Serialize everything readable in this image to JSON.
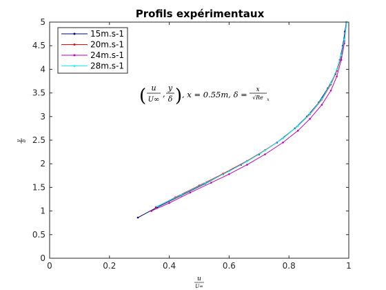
{
  "chart_data": {
    "type": "line",
    "title": "Profils expérimentaux",
    "xlabel": "u / U∞",
    "ylabel": "y / δ",
    "xlim": [
      0,
      1
    ],
    "ylim": [
      0,
      5
    ],
    "xticks": [
      "0",
      "0.2",
      "0.4",
      "0.6",
      "0.8",
      "1"
    ],
    "yticks": [
      "0",
      "0.5",
      "1",
      "1.5",
      "2",
      "2.5",
      "3",
      "3.5",
      "4",
      "4.5",
      "5"
    ],
    "grid": false,
    "legend_position": "top-left",
    "annotation": {
      "prefix": "(u/U∞, y/δ), x = 0.55m, δ = x/√Re",
      "parts": [
        "u",
        "U∞",
        "y",
        "δ",
        ", x = 0.55m, δ =",
        "x",
        "√Re",
        "x"
      ]
    },
    "series": [
      {
        "name": "15m.s-1",
        "color": "#00007f",
        "x": [
          0.295,
          0.36,
          0.44,
          0.52,
          0.58,
          0.64,
          0.7,
          0.76,
          0.82,
          0.86,
          0.9,
          0.93,
          0.955,
          0.97,
          0.98,
          0.987,
          0.992
        ],
        "y": [
          0.86,
          1.08,
          1.33,
          1.58,
          1.78,
          1.98,
          2.2,
          2.45,
          2.75,
          3.0,
          3.3,
          3.6,
          3.9,
          4.2,
          4.5,
          4.8,
          5.0
        ]
      },
      {
        "name": "20m.s-1",
        "color": "#ff0000",
        "x": [
          0.355,
          0.42,
          0.5,
          0.58,
          0.66,
          0.72,
          0.78,
          0.83,
          0.87,
          0.91,
          0.94,
          0.96,
          0.975,
          0.985,
          0.993
        ],
        "y": [
          1.08,
          1.29,
          1.54,
          1.79,
          2.06,
          2.29,
          2.54,
          2.8,
          3.05,
          3.36,
          3.68,
          3.97,
          4.26,
          4.6,
          5.0
        ]
      },
      {
        "name": "24m.s-1",
        "color": "#bf00bf",
        "x": [
          0.34,
          0.4,
          0.47,
          0.54,
          0.6,
          0.66,
          0.72,
          0.78,
          0.83,
          0.87,
          0.91,
          0.94,
          0.96,
          0.975,
          0.985,
          0.992
        ],
        "y": [
          1.0,
          1.17,
          1.39,
          1.6,
          1.78,
          1.98,
          2.2,
          2.45,
          2.7,
          2.95,
          3.25,
          3.55,
          3.85,
          4.2,
          4.55,
          5.0
        ]
      },
      {
        "name": "28m.s-1",
        "color": "#00ffff",
        "x": [
          0.36,
          0.44,
          0.52,
          0.6,
          0.66,
          0.72,
          0.78,
          0.83,
          0.87,
          0.91,
          0.94,
          0.96,
          0.975,
          0.985,
          0.993
        ],
        "y": [
          1.1,
          1.34,
          1.59,
          1.84,
          2.05,
          2.28,
          2.54,
          2.8,
          3.06,
          3.37,
          3.7,
          4.0,
          4.3,
          4.63,
          5.0
        ]
      }
    ]
  }
}
